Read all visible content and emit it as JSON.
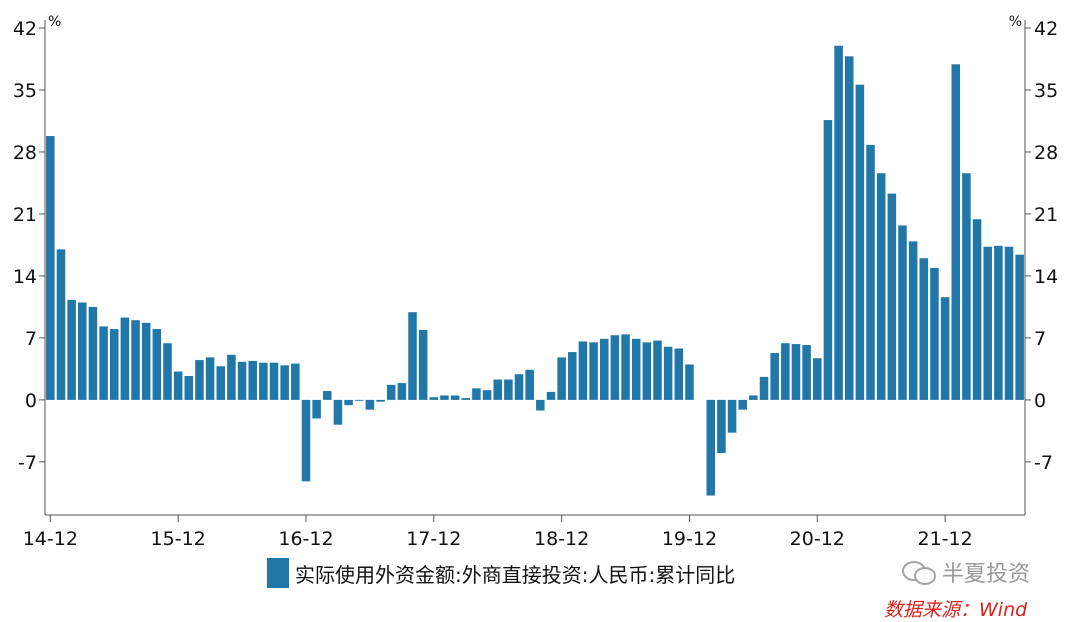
{
  "chart_data": {
    "type": "bar",
    "title": "",
    "unit_left": "%",
    "unit_right": "%",
    "ylim": [
      -13,
      42
    ],
    "yticks": [
      42,
      35,
      28,
      21,
      14,
      7,
      0,
      -7
    ],
    "ytick_labels": [
      "42",
      "35",
      "28",
      "21",
      "14",
      "7",
      "0",
      "-7"
    ],
    "xtick_labels": [
      "14-12",
      "15-12",
      "16-12",
      "17-12",
      "18-12",
      "19-12",
      "20-12",
      "21-12"
    ],
    "xtick_index": [
      0,
      12,
      24,
      36,
      48,
      60,
      72,
      84
    ],
    "grid": false,
    "legend_position": "bottom",
    "series": [
      {
        "name": "实际使用外资金额:外商直接投资:人民币:累计同比",
        "color": "#2277a9",
        "values": [
          29.8,
          17.0,
          11.3,
          11.0,
          10.5,
          8.3,
          8.0,
          9.3,
          9.0,
          8.7,
          8.0,
          6.4,
          3.2,
          2.7,
          4.5,
          4.8,
          3.8,
          5.1,
          4.3,
          4.4,
          4.2,
          4.2,
          3.9,
          4.1,
          -9.2,
          -2.1,
          1.0,
          -2.8,
          -0.6,
          -0.1,
          -1.1,
          -0.2,
          1.7,
          1.9,
          9.9,
          7.9,
          0.3,
          0.5,
          0.5,
          0.2,
          1.3,
          1.1,
          2.3,
          2.3,
          2.9,
          3.4,
          -1.2,
          0.9,
          4.8,
          5.4,
          6.6,
          6.5,
          6.9,
          7.3,
          7.4,
          6.9,
          6.5,
          6.7,
          6.0,
          5.8,
          4.0,
          0.0,
          -10.8,
          -6.0,
          -3.7,
          -1.1,
          0.5,
          2.6,
          5.3,
          6.4,
          6.3,
          6.2,
          4.7,
          31.6,
          40.0,
          38.8,
          35.6,
          28.8,
          25.6,
          23.3,
          19.7,
          17.9,
          16.0,
          14.9,
          11.6,
          37.9,
          25.6,
          20.4,
          17.3,
          17.4,
          17.3,
          16.4
        ]
      }
    ]
  },
  "watermark": {
    "brand": "半夏投资"
  },
  "source_text": "数据来源：Wind"
}
